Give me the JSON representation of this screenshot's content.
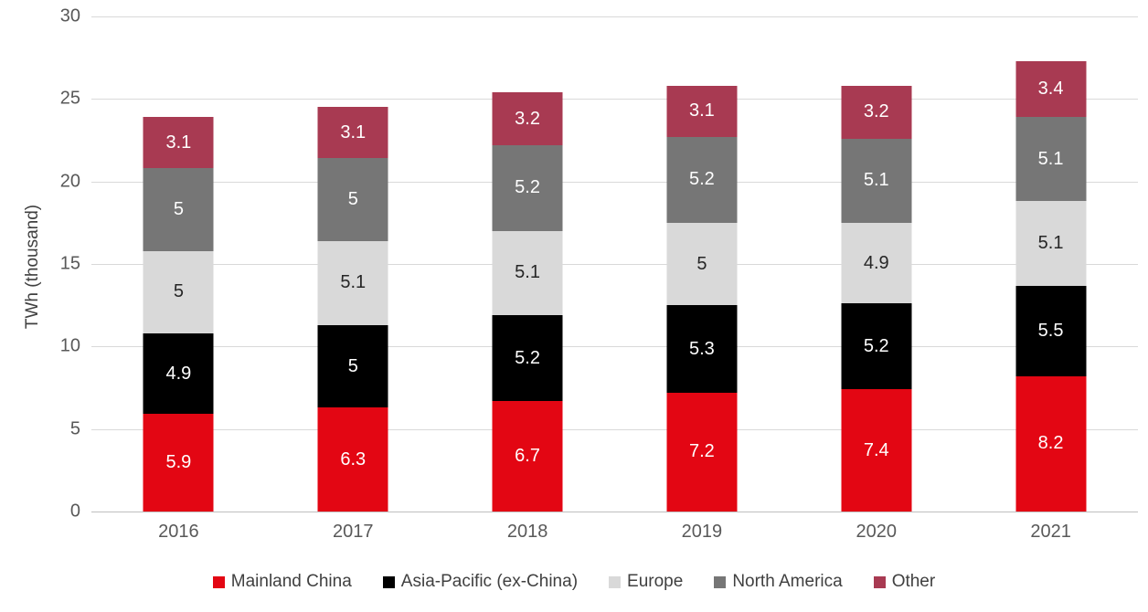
{
  "chart_data": {
    "type": "bar",
    "stacked": true,
    "title": "",
    "xlabel": "",
    "ylabel": "TWh (thousand)",
    "ylim": [
      0,
      30
    ],
    "yticks": [
      0,
      5,
      10,
      15,
      20,
      25,
      30
    ],
    "grid": true,
    "legend_position": "bottom",
    "categories": [
      "2016",
      "2017",
      "2018",
      "2019",
      "2020",
      "2021"
    ],
    "series": [
      {
        "name": "Mainland China",
        "color": "#e30613",
        "label_color": "#ffffff",
        "values": [
          5.9,
          6.3,
          6.7,
          7.2,
          7.4,
          8.2
        ]
      },
      {
        "name": "Asia-Pacific (ex-China)",
        "color": "#000000",
        "label_color": "#ffffff",
        "values": [
          4.9,
          5,
          5.2,
          5.3,
          5.2,
          5.5
        ]
      },
      {
        "name": "Europe",
        "color": "#d9d9d9",
        "label_color": "#262626",
        "values": [
          5,
          5.1,
          5.1,
          5,
          4.9,
          5.1
        ]
      },
      {
        "name": "North America",
        "color": "#767676",
        "label_color": "#ffffff",
        "values": [
          5,
          5,
          5.2,
          5.2,
          5.1,
          5.1
        ]
      },
      {
        "name": "Other",
        "color": "#a83a52",
        "label_color": "#ffffff",
        "values": [
          3.1,
          3.1,
          3.2,
          3.1,
          3.2,
          3.4
        ]
      }
    ],
    "totals": [
      23.9,
      24.5,
      25.4,
      25.8,
      25.8,
      27.3
    ]
  },
  "styles": {
    "background": "#ffffff",
    "gridline_color": "#d9d9d9",
    "baseline_color": "#bfbfbf",
    "tick_label_color": "#595959",
    "axis_title_color": "#404040",
    "legend_text_color": "#404040"
  }
}
